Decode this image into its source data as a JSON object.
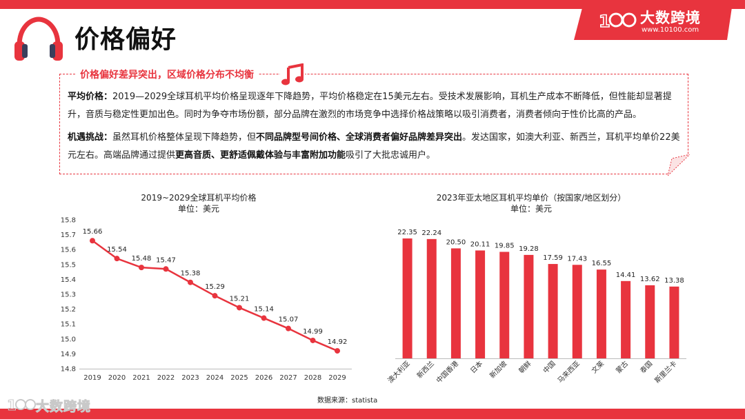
{
  "page": {
    "title": "价格偏好",
    "brand": {
      "name": "大数跨境",
      "url": "www.10100.com",
      "accent": "#e8343e"
    }
  },
  "summary": {
    "heading": "价格偏好差异突出，区域价格分布不均衡",
    "p1": {
      "label": "平均价格：",
      "text": "2019—2029全球耳机平均价格呈现逐年下降趋势，平均价格稳定在15美元左右。受技术发展影响，耳机生产成本不断降低，但性能却显著提升，音质与稳定性更加出色。同时为争夺市场份额，部分品牌在激烈的市场竞争中选择价格战策略以吸引消费者，消费者倾向于性价比高的产品。"
    },
    "p2": {
      "label": "机遇挑战：",
      "t1": "虽然耳机价格整体呈现下降趋势，但",
      "b1": "不同品牌型号间价格、全球消费者偏好品牌差异突出",
      "t2": "。发达国家，如澳大利亚、新西兰，耳机平均单价22美元左右。高端品牌通过提供",
      "b2": "更高音质、更舒适佩戴体验与丰富附加功能",
      "t3": "吸引了大批忠诚用户。"
    }
  },
  "chart_data": [
    {
      "type": "line",
      "title": "2019~2029全球耳机平均价格",
      "subtitle": "单位：美元",
      "x": [
        "2019",
        "2020",
        "2021",
        "2022",
        "2023",
        "2024",
        "2025",
        "2026",
        "2027",
        "2028",
        "2029"
      ],
      "values": [
        15.66,
        15.54,
        15.48,
        15.47,
        15.38,
        15.29,
        15.21,
        15.14,
        15.07,
        14.99,
        14.92
      ],
      "ylim": [
        14.8,
        15.8
      ],
      "yticks": [
        "15.8",
        "15.7",
        "15.6",
        "15.5",
        "15.4",
        "15.3",
        "15.2",
        "15.1",
        "15.0",
        "14.9",
        "14.8"
      ],
      "color": "#e8343e",
      "grid": false
    },
    {
      "type": "bar",
      "title": "2023年亚太地区耳机平均单价（按国家/地区划分）",
      "subtitle": "单位：美元",
      "categories": [
        "澳大利亚",
        "新西兰",
        "中国香港",
        "日本",
        "新加坡",
        "朝鲜",
        "中国",
        "马来西亚",
        "文莱",
        "蒙古",
        "泰国",
        "斯里兰卡"
      ],
      "values": [
        22.35,
        22.24,
        20.5,
        20.11,
        19.85,
        19.28,
        17.59,
        17.43,
        16.55,
        14.41,
        13.62,
        13.38
      ],
      "labels": [
        "22.35",
        "22.24",
        "20.50",
        "20.11",
        "19.85",
        "19.28",
        "17.59",
        "17.43",
        "16.55",
        "14.41",
        "13.62",
        "13.38"
      ],
      "color": "#e8343e",
      "grid": false
    }
  ],
  "source": "数据来源：statista"
}
